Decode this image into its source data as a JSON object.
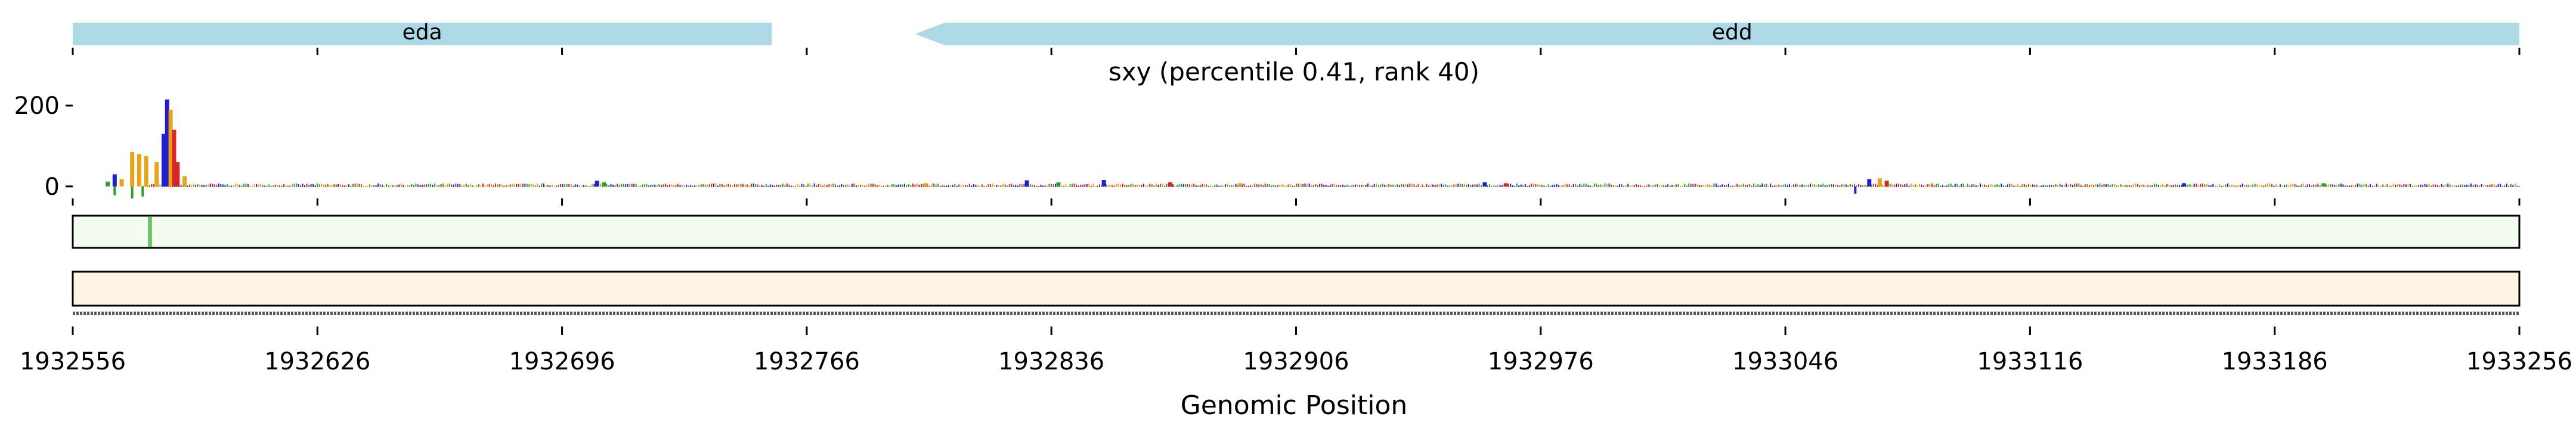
{
  "chart_data": {
    "type": "genome-track",
    "title": "sxy (percentile 0.41, rank 40)",
    "xlabel": "Genomic Position",
    "xlim": [
      1932556,
      1933256
    ],
    "x_ticks": [
      1932556,
      1932626,
      1932696,
      1932766,
      1932836,
      1932906,
      1932976,
      1933046,
      1933116,
      1933186,
      1933256
    ],
    "genes": [
      {
        "name": "eda",
        "start": 1932556,
        "end": 1932756,
        "strand": "+"
      },
      {
        "name": "edd",
        "start": 1932797,
        "end": 1933256,
        "strand": "-"
      }
    ],
    "signal": {
      "y_ticks": [
        0,
        200
      ],
      "ylim": [
        -40,
        240
      ],
      "peak_bars": [
        {
          "x": 1932566,
          "value": 12,
          "color": "#2ca02c"
        },
        {
          "x": 1932568,
          "value": 30,
          "color": "#1f1fd0"
        },
        {
          "x": 1932570,
          "value": 18,
          "color": "#e8a317"
        },
        {
          "x": 1932573,
          "value": 85,
          "color": "#e8a317"
        },
        {
          "x": 1932575,
          "value": 80,
          "color": "#e8a317"
        },
        {
          "x": 1932577,
          "value": 75,
          "color": "#e8a317"
        },
        {
          "x": 1932580,
          "value": 60,
          "color": "#e8a317"
        },
        {
          "x": 1932582,
          "value": 130,
          "color": "#1f1fd0"
        },
        {
          "x": 1932583,
          "value": 215,
          "color": "#1f1fd0"
        },
        {
          "x": 1932584,
          "value": 190,
          "color": "#e8a317"
        },
        {
          "x": 1932585,
          "value": 140,
          "color": "#d62728"
        },
        {
          "x": 1932586,
          "value": 60,
          "color": "#d62728"
        },
        {
          "x": 1932588,
          "value": 25,
          "color": "#e8a317"
        }
      ],
      "small_features": [
        {
          "x": 1932706,
          "value": 14,
          "color": "#1f1fd0"
        },
        {
          "x": 1932708,
          "value": 10,
          "color": "#2ca02c"
        },
        {
          "x": 1932800,
          "value": 8,
          "color": "#e8a317"
        },
        {
          "x": 1932829,
          "value": 15,
          "color": "#1f1fd0"
        },
        {
          "x": 1932838,
          "value": 10,
          "color": "#2ca02c"
        },
        {
          "x": 1932851,
          "value": 16,
          "color": "#1f1fd0"
        },
        {
          "x": 1932870,
          "value": 10,
          "color": "#d62728"
        },
        {
          "x": 1932890,
          "value": 8,
          "color": "#e8a317"
        },
        {
          "x": 1932960,
          "value": 10,
          "color": "#1f1fd0"
        },
        {
          "x": 1932966,
          "value": 8,
          "color": "#d62728"
        },
        {
          "x": 1933070,
          "value": 18,
          "color": "#1f1fd0"
        },
        {
          "x": 1933073,
          "value": 20,
          "color": "#e8a317"
        },
        {
          "x": 1933075,
          "value": 14,
          "color": "#d62728"
        },
        {
          "x": 1933160,
          "value": 8,
          "color": "#1f1fd0"
        },
        {
          "x": 1933200,
          "value": 8,
          "color": "#2ca02c"
        }
      ],
      "negative_marks": [
        {
          "x": 1932568,
          "value": -22,
          "color": "#2ca02c"
        },
        {
          "x": 1932573,
          "value": -30,
          "color": "#2ca02c"
        },
        {
          "x": 1932576,
          "value": -25,
          "color": "#2ca02c"
        },
        {
          "x": 1933066,
          "value": -18,
          "color": "#1f1fd0"
        }
      ]
    },
    "track2": {
      "highlight_x": 1932578,
      "background": "#f4fbf1",
      "highlight_color": "#6cc46c"
    },
    "track3": {
      "background": "#fff3e3"
    }
  }
}
